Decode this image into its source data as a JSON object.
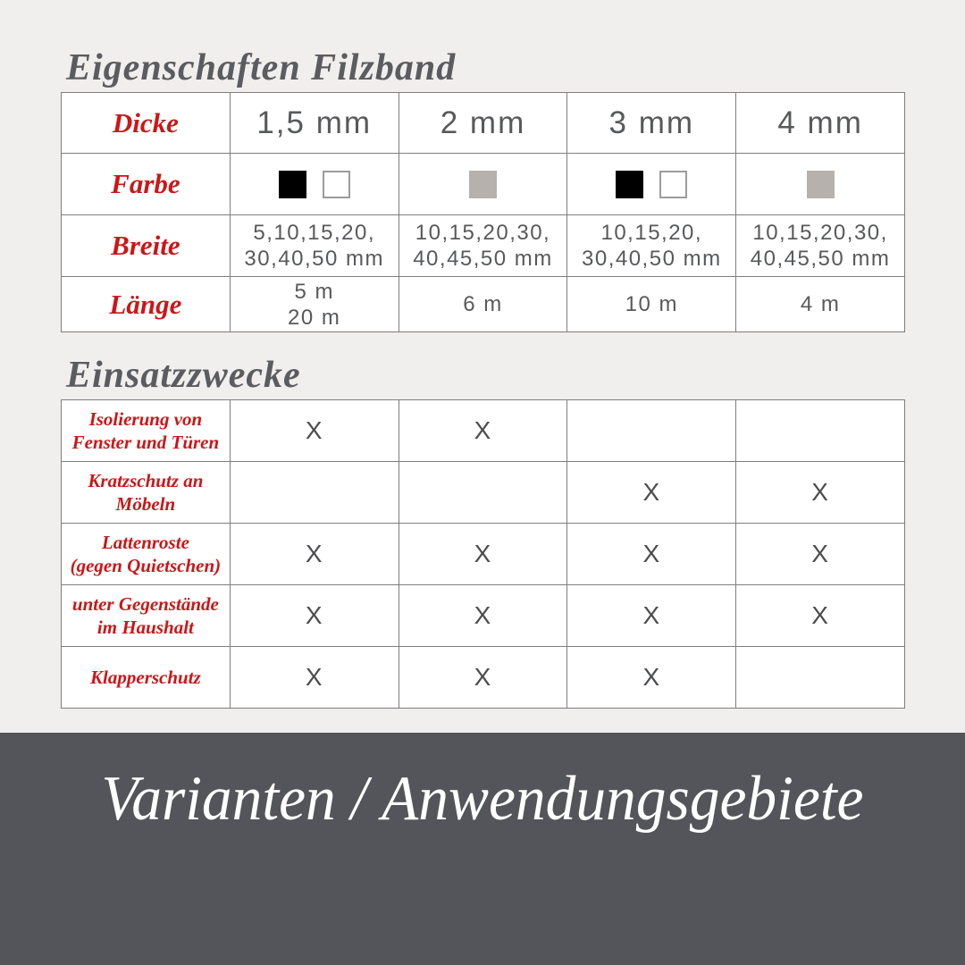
{
  "colors": {
    "page_background": "#f0efee",
    "accent_red": "#cc1617",
    "text_gray": "#58595b",
    "table_border": "#7e7e7e",
    "banner_background": "#54555a",
    "banner_text": "#ffffff"
  },
  "properties_section": {
    "title": "Eigenschaften Filzband",
    "row_labels": {
      "dicke": "Dicke",
      "farbe": "Farbe",
      "breite": "Breite",
      "laenge": "Länge"
    },
    "swatch_colors": {
      "black": "#000000",
      "white": "#ffffff",
      "greige": "#b6b1ad"
    },
    "columns": [
      {
        "dicke": "1,5 mm",
        "farbe": [
          "black",
          "white"
        ],
        "breite": [
          "5,10,15,20,",
          "30,40,50 mm"
        ],
        "laenge": [
          "5 m",
          "20 m"
        ]
      },
      {
        "dicke": "2 mm",
        "farbe": [
          "greige"
        ],
        "breite": [
          "10,15,20,30,",
          "40,45,50 mm"
        ],
        "laenge": [
          "6 m"
        ]
      },
      {
        "dicke": "3 mm",
        "farbe": [
          "black",
          "white"
        ],
        "breite": [
          "10,15,20,",
          "30,40,50 mm"
        ],
        "laenge": [
          "10 m"
        ]
      },
      {
        "dicke": "4 mm",
        "farbe": [
          "greige"
        ],
        "breite": [
          "10,15,20,30,",
          "40,45,50 mm"
        ],
        "laenge": [
          "4 m"
        ]
      }
    ]
  },
  "usage_section": {
    "title": "Einsatzzwecke",
    "rows": [
      {
        "label": [
          "Isolierung von",
          "Fenster und Türen"
        ],
        "marks": [
          "X",
          "X",
          "",
          ""
        ]
      },
      {
        "label": [
          "Kratzschutz an",
          "Möbeln"
        ],
        "marks": [
          "",
          "",
          "X",
          "X"
        ]
      },
      {
        "label": [
          "Lattenroste",
          "(gegen Quietschen)"
        ],
        "marks": [
          "X",
          "X",
          "X",
          "X"
        ]
      },
      {
        "label": [
          "unter Gegenstände",
          "im Haushalt"
        ],
        "marks": [
          "X",
          "X",
          "X",
          "X"
        ]
      },
      {
        "label": [
          "Klapperschutz"
        ],
        "marks": [
          "X",
          "X",
          "X",
          ""
        ]
      }
    ]
  },
  "banner": {
    "title": "Varianten / Anwendungsgebiete"
  }
}
